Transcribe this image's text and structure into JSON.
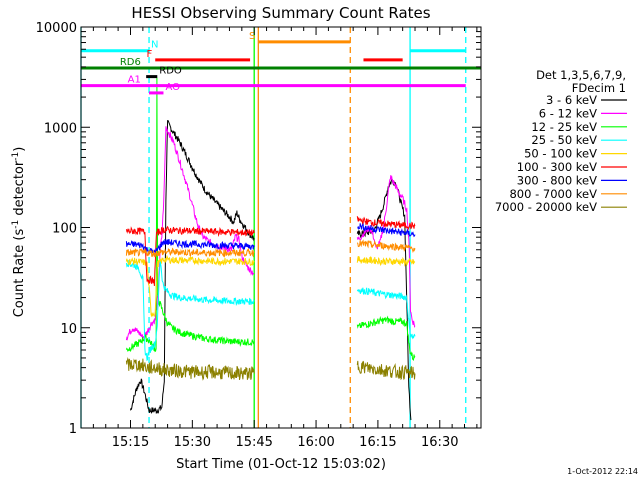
{
  "chart_data": {
    "type": "line",
    "title": "HESSI Observing Summary Count Rates",
    "xlabel": "Start Time (01-Oct-12 15:03:02)",
    "ylabel_main": "Count Rate (s",
    "ylabel_sup": "-1",
    "ylabel_mid": " detector",
    "ylabel_end": ")",
    "y_scale": "log",
    "ylim": [
      1,
      10000
    ],
    "xlim_minutes": [
      0,
      97
    ],
    "x_ticks": [
      {
        "m": 12,
        "label": "15:15"
      },
      {
        "m": 27,
        "label": "15:30"
      },
      {
        "m": 42,
        "label": "15:45"
      },
      {
        "m": 57,
        "label": "16:00"
      },
      {
        "m": 72,
        "label": "16:15"
      },
      {
        "m": 87,
        "label": "16:30"
      }
    ],
    "y_ticks": [
      {
        "v": 1,
        "label": "1"
      },
      {
        "v": 10,
        "label": "10"
      },
      {
        "v": 100,
        "label": "100"
      },
      {
        "v": 1000,
        "label": "1000"
      },
      {
        "v": 10000,
        "label": "10000"
      }
    ],
    "legend_title": [
      "Det 1,3,5,6,7,9,",
      "FDecim 1"
    ],
    "legend_position": "right",
    "series": [
      {
        "name": "3 - 6 keV",
        "color": "#000000",
        "seg1": [
          [
            12.0,
            1.5
          ],
          [
            13.5,
            2.5
          ],
          [
            14.5,
            3.0
          ],
          [
            15.5,
            2.2
          ],
          [
            16.5,
            1.5
          ],
          [
            18.5,
            1.5
          ],
          [
            19.6,
            1.6
          ],
          [
            20.2,
            3.0
          ],
          [
            20.6,
            200
          ],
          [
            21.0,
            1100
          ],
          [
            22,
            950
          ],
          [
            24,
            700
          ],
          [
            26,
            480
          ],
          [
            28,
            330
          ],
          [
            30,
            240
          ],
          [
            32,
            190
          ],
          [
            34,
            155
          ],
          [
            36,
            128
          ],
          [
            37,
            112
          ],
          [
            37.8,
            140
          ],
          [
            38.5,
            120
          ],
          [
            40,
            97
          ],
          [
            41,
            85
          ],
          [
            42,
            78
          ]
        ],
        "seg2": [
          [
            67,
            85
          ],
          [
            69,
            88
          ],
          [
            71,
            92
          ],
          [
            72.5,
            130
          ],
          [
            73.5,
            175
          ],
          [
            74.5,
            255
          ],
          [
            75.5,
            300
          ],
          [
            76.5,
            270
          ],
          [
            77.5,
            180
          ],
          [
            78.5,
            130
          ],
          [
            79.5,
            2.5
          ],
          [
            80,
            1.2
          ]
        ]
      },
      {
        "name": "6 - 12 keV",
        "color": "#ff00ff",
        "seg1": [
          [
            11.0,
            8
          ],
          [
            12.5,
            10
          ],
          [
            14,
            9
          ],
          [
            15,
            8
          ],
          [
            16,
            9
          ],
          [
            17,
            11
          ],
          [
            18,
            12
          ],
          [
            18.7,
            22
          ],
          [
            19.2,
            60
          ],
          [
            19.6,
            80
          ],
          [
            20.1,
            200
          ],
          [
            20.6,
            1000
          ],
          [
            21.5,
            850
          ],
          [
            22.5,
            700
          ],
          [
            23.5,
            520
          ],
          [
            25,
            330
          ],
          [
            26.5,
            200
          ],
          [
            27.5,
            140
          ],
          [
            28.5,
            100
          ],
          [
            29.5,
            82
          ],
          [
            31,
            72
          ],
          [
            33,
            66
          ],
          [
            35,
            62
          ],
          [
            36.5,
            60
          ],
          [
            37.5,
            82
          ],
          [
            38.3,
            75
          ],
          [
            39,
            52
          ],
          [
            40,
            42
          ],
          [
            41,
            38
          ],
          [
            42,
            35
          ]
        ],
        "seg2": [
          [
            67,
            75
          ],
          [
            68,
            82
          ],
          [
            69,
            92
          ],
          [
            70,
            100
          ],
          [
            71,
            80
          ],
          [
            71.5,
            62
          ],
          [
            72.5,
            70
          ],
          [
            73.5,
            110
          ],
          [
            74.5,
            220
          ],
          [
            75,
            320
          ],
          [
            75.6,
            290
          ],
          [
            76.3,
            260
          ],
          [
            77,
            225
          ],
          [
            78,
            195
          ],
          [
            79,
            150
          ],
          [
            79.6,
            60
          ],
          [
            79.9,
            15
          ],
          [
            80.3,
            12
          ],
          [
            81,
            10.5
          ]
        ]
      },
      {
        "name": "12 - 25 keV",
        "color": "#00ff00",
        "seg1": [
          [
            11.0,
            6
          ],
          [
            12.5,
            6.5
          ],
          [
            14,
            7
          ],
          [
            15.5,
            8
          ],
          [
            16.5,
            7.5
          ],
          [
            17.5,
            6.5
          ],
          [
            18.2,
            6
          ],
          [
            18.4,
            3000
          ],
          [
            18.6,
            20
          ],
          [
            20,
            14
          ],
          [
            21,
            11
          ],
          [
            22,
            10
          ],
          [
            24,
            9
          ],
          [
            26,
            8.5
          ],
          [
            30,
            7.8
          ],
          [
            36,
            7.3
          ],
          [
            42,
            7.2
          ]
        ],
        "seg2": [
          [
            67,
            10
          ],
          [
            68,
            10.5
          ],
          [
            70,
            11
          ],
          [
            72,
            11.5
          ],
          [
            74,
            12
          ],
          [
            76,
            11.5
          ],
          [
            78,
            11.5
          ],
          [
            79,
            11
          ],
          [
            79.7,
            6
          ],
          [
            80.5,
            5
          ],
          [
            81,
            5.2
          ]
        ]
      },
      {
        "name": "25 - 50 keV",
        "color": "#00ffff",
        "seg1": [
          [
            11.0,
            45
          ],
          [
            12,
            43
          ],
          [
            13,
            42
          ],
          [
            14,
            40
          ],
          [
            15,
            30
          ],
          [
            15.5,
            6
          ],
          [
            16,
            5
          ],
          [
            16.7,
            6
          ],
          [
            17.3,
            6.5
          ],
          [
            18,
            7
          ],
          [
            18.5,
            11
          ],
          [
            19.2,
            50
          ],
          [
            19.8,
            28
          ],
          [
            20.5,
            24
          ],
          [
            22,
            21
          ],
          [
            24,
            20
          ],
          [
            27,
            19.5
          ],
          [
            30,
            19
          ],
          [
            35,
            18.5
          ],
          [
            42,
            18.3
          ]
        ],
        "seg2": [
          [
            67,
            24
          ],
          [
            68,
            23.5
          ],
          [
            70,
            23
          ],
          [
            72,
            22
          ],
          [
            74,
            21.5
          ],
          [
            76,
            21
          ],
          [
            78,
            20.5
          ],
          [
            79,
            20
          ],
          [
            79.7,
            9
          ],
          [
            80.5,
            8
          ],
          [
            81,
            8.2
          ]
        ]
      },
      {
        "name": "50 - 100 keV",
        "color": "#ffd700",
        "seg1": [
          [
            11.0,
            46
          ],
          [
            13,
            46
          ],
          [
            15,
            45
          ],
          [
            16,
            44
          ],
          [
            17,
            14
          ],
          [
            18,
            14
          ],
          [
            18.5,
            43
          ],
          [
            20,
            48
          ],
          [
            24,
            47
          ],
          [
            28,
            47
          ],
          [
            32,
            46
          ],
          [
            36,
            46
          ],
          [
            40,
            46
          ],
          [
            42,
            45
          ]
        ],
        "seg2": [
          [
            67,
            48
          ],
          [
            69,
            47
          ],
          [
            71,
            47
          ],
          [
            73,
            46
          ],
          [
            75,
            46
          ],
          [
            77,
            46
          ],
          [
            79,
            45
          ],
          [
            80,
            45
          ],
          [
            81,
            45
          ]
        ]
      },
      {
        "name": "100 - 300 keV",
        "color": "#ff0000",
        "seg1": [
          [
            11.0,
            92
          ],
          [
            13,
            92
          ],
          [
            14.5,
            92
          ],
          [
            15.5,
            90
          ],
          [
            16,
            30
          ],
          [
            17,
            30
          ],
          [
            17.8,
            28
          ],
          [
            18.3,
            88
          ],
          [
            20,
            95
          ],
          [
            24,
            93
          ],
          [
            28,
            92
          ],
          [
            32,
            91
          ],
          [
            36,
            90
          ],
          [
            40,
            89
          ],
          [
            42,
            88
          ]
        ],
        "seg2": [
          [
            67,
            120
          ],
          [
            69,
            115
          ],
          [
            71,
            112
          ],
          [
            73,
            110
          ],
          [
            75,
            108
          ],
          [
            77,
            106
          ],
          [
            79,
            105
          ],
          [
            80,
            104
          ],
          [
            81,
            104
          ]
        ]
      },
      {
        "name": "300 - 800 keV",
        "color": "#0000ff",
        "seg1": [
          [
            11.0,
            68
          ],
          [
            13,
            68
          ],
          [
            15,
            66
          ],
          [
            16,
            60
          ],
          [
            17,
            58
          ],
          [
            18,
            56
          ],
          [
            18.5,
            60
          ],
          [
            20,
            72
          ],
          [
            24,
            69
          ],
          [
            28,
            68
          ],
          [
            32,
            67
          ],
          [
            36,
            66
          ],
          [
            40,
            65
          ],
          [
            42,
            64
          ]
        ],
        "seg2": [
          [
            67,
            105
          ],
          [
            69,
            100
          ],
          [
            71,
            97
          ],
          [
            73,
            95
          ],
          [
            75,
            92
          ],
          [
            77,
            90
          ],
          [
            79,
            88
          ],
          [
            80,
            86
          ],
          [
            81,
            85
          ]
        ]
      },
      {
        "name": "800 - 7000 keV",
        "color": "#ff8c00",
        "seg1": [
          [
            11.0,
            56
          ],
          [
            13,
            56
          ],
          [
            15,
            56
          ],
          [
            16,
            56
          ],
          [
            18,
            55
          ],
          [
            20,
            57
          ],
          [
            24,
            57
          ],
          [
            28,
            56
          ],
          [
            32,
            56
          ],
          [
            36,
            56
          ],
          [
            40,
            56
          ],
          [
            42,
            56
          ]
        ],
        "seg2": [
          [
            67,
            70
          ],
          [
            69,
            68
          ],
          [
            71,
            67
          ],
          [
            73,
            66
          ],
          [
            75,
            65
          ],
          [
            77,
            64
          ],
          [
            79,
            63
          ],
          [
            80,
            62
          ],
          [
            81,
            62
          ]
        ]
      },
      {
        "name": "7000 - 20000 keV",
        "color": "#8b8000",
        "seg1": [
          [
            11.0,
            4.2
          ],
          [
            13,
            4.3
          ],
          [
            15,
            4.2
          ],
          [
            16,
            4.0
          ],
          [
            18,
            4.0
          ],
          [
            20,
            3.8
          ],
          [
            24,
            3.7
          ],
          [
            28,
            3.6
          ],
          [
            32,
            3.6
          ],
          [
            36,
            3.5
          ],
          [
            40,
            3.5
          ],
          [
            42,
            3.5
          ]
        ],
        "seg2": [
          [
            67,
            4.2
          ],
          [
            69,
            4.0
          ],
          [
            71,
            3.9
          ],
          [
            73,
            3.8
          ],
          [
            75,
            3.7
          ],
          [
            77,
            3.6
          ],
          [
            79,
            3.6
          ],
          [
            80,
            3.5
          ],
          [
            81,
            3.5
          ]
        ]
      }
    ],
    "vertical_lines": [
      {
        "m": 0.0,
        "color": "#00ffff",
        "style": "solid"
      },
      {
        "m": 16.5,
        "color": "#00ffff",
        "style": "dashed"
      },
      {
        "m": 42.0,
        "color": "#00ff00",
        "style": "solid"
      },
      {
        "m": 43.0,
        "color": "#ff8c00",
        "style": "solid"
      },
      {
        "m": 65.3,
        "color": "#ff8c00",
        "style": "dashed"
      },
      {
        "m": 79.8,
        "color": "#00ffff",
        "style": "solid"
      },
      {
        "m": 93.3,
        "color": "#00ffff",
        "style": "dashed"
      }
    ],
    "flags": [
      {
        "label": "N",
        "color": "#00ffff",
        "level": 5800,
        "segments": [
          [
            0,
            16.5
          ],
          [
            79.8,
            93.3
          ]
        ]
      },
      {
        "label": "S",
        "color": "#ff8c00",
        "level": 7100,
        "segments": [
          [
            43,
            65.3
          ]
        ]
      },
      {
        "label": "F",
        "color": "#ff0000",
        "level": 4700,
        "segments": [
          [
            18,
            41
          ],
          [
            68.5,
            78
          ]
        ]
      },
      {
        "label": "RD6",
        "color": "#008000",
        "level": 3900,
        "segments": [
          [
            0,
            97
          ]
        ]
      },
      {
        "label": "RDO",
        "color": "#000000",
        "level": 3200,
        "segments": [
          [
            15.8,
            18.5
          ]
        ]
      },
      {
        "label": "A1",
        "color": "#ff00ff",
        "level": 2600,
        "segments": [
          [
            0,
            93.3
          ]
        ]
      },
      {
        "label": "AO",
        "color": "#ff00ff",
        "level": 2200,
        "segments": [
          [
            16.5,
            20
          ]
        ]
      }
    ],
    "timestamp": "1-Oct-2012 22:14"
  }
}
